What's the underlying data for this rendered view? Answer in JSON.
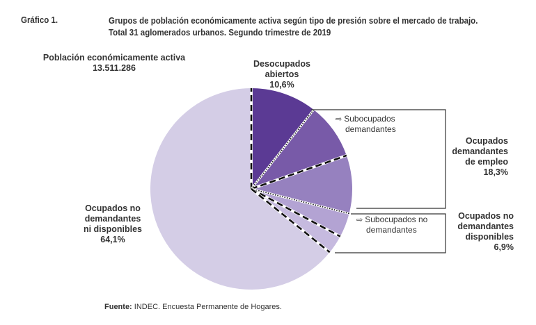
{
  "header": {
    "figure_number": "Gráfico 1.",
    "title_line1": "Grupos de población económicamente activa según tipo de presión sobre el mercado de trabajo.",
    "title_line2": "Total 31 aglomerados urbanos. Segundo trimestre de 2019"
  },
  "total": {
    "label": "Población económicamente activa",
    "value": "13.511.286"
  },
  "labels": {
    "desocupados_l1": "Desocupados",
    "desocupados_l2": "abiertos",
    "desocupados_pct": "10,6%",
    "sub_dem_l1": "Subocupados",
    "sub_dem_l2": "demandantes",
    "ocup_dem_l1": "Ocupados",
    "ocup_dem_l2": "demandantes",
    "ocup_dem_l3": "de empleo",
    "ocup_dem_pct": "18,3%",
    "sub_nodem_l1": "Subocupados no",
    "sub_nodem_l2": "demandantes",
    "ocup_nodem_disp_l1": "Ocupados no",
    "ocup_nodem_disp_l2": "demandantes",
    "ocup_nodem_disp_l3": "disponibles",
    "ocup_nodem_disp_pct": "6,9%",
    "ocup_nodem_nodisp_l1": "Ocupados no",
    "ocup_nodem_nodisp_l2": "demandantes",
    "ocup_nodem_nodisp_l3": "ni disponibles",
    "ocup_nodem_nodisp_pct": "64,1%",
    "arrow_glyph": "⇨"
  },
  "source": {
    "prefix": "Fuente:",
    "text": "INDEC. Encuesta Permanente de Hogares."
  },
  "chart_data": {
    "type": "pie",
    "total_label": "Población económicamente activa",
    "total_value": "13.511.286",
    "slices": [
      {
        "name": "Desocupados abiertos",
        "value": 10.6,
        "color": "#5b3a94"
      },
      {
        "name": "Subocupados demandantes",
        "value": 9.0,
        "color": "#785aa8"
      },
      {
        "name": "Ocupados demandantes de empleo (otros)",
        "value": 9.3,
        "color": "#9681bf"
      },
      {
        "name": "Subocupados no demandantes",
        "value": 3.9,
        "color": "#b3a3d3"
      },
      {
        "name": "Ocupados no demandantes disponibles (otros)",
        "value": 3.0,
        "color": "#c6badf"
      },
      {
        "name": "Ocupados no demandantes ni disponibles",
        "value": 64.1,
        "color": "#d4cde6"
      }
    ],
    "groups": [
      {
        "name": "Ocupados demandantes de empleo",
        "value": 18.3
      },
      {
        "name": "Ocupados no demandantes disponibles",
        "value": 6.9
      }
    ],
    "separators": [
      "dashed",
      "dotted",
      "dashed",
      "dotted",
      "dashed",
      "dashed"
    ],
    "start_angle_deg": 0,
    "direction": "clockwise"
  }
}
